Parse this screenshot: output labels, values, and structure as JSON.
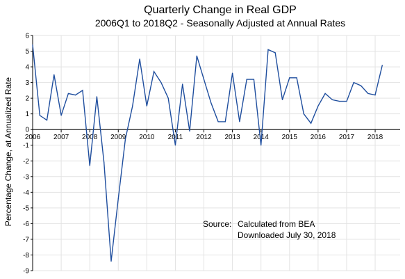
{
  "chart_data": {
    "type": "line",
    "title": "Quarterly Change in Real GDP",
    "subtitle": "2006Q1 to 2018Q2 - Seasonally Adjusted at Annual Rates",
    "ylabel": "Percentage Change, at Annualized Rate",
    "xlabel": "",
    "ylim": [
      -9,
      6
    ],
    "yticks": [
      6,
      5,
      4,
      3,
      2,
      1,
      0,
      -1,
      -2,
      -3,
      -4,
      -5,
      -6,
      -7,
      -8,
      -9
    ],
    "xticks": [
      "2006",
      "2007",
      "2008",
      "2009",
      "2010",
      "2011",
      "2012",
      "2013",
      "2014",
      "2015",
      "2016",
      "2017",
      "2018"
    ],
    "grid": true,
    "color": "#1f4e9e",
    "series": [
      {
        "x": [
          "2006Q1",
          "2006Q2",
          "2006Q3",
          "2006Q4",
          "2007Q1",
          "2007Q2",
          "2007Q3",
          "2007Q4",
          "2008Q1",
          "2008Q2",
          "2008Q3",
          "2008Q4",
          "2009Q1",
          "2009Q2",
          "2009Q3",
          "2009Q4",
          "2010Q1",
          "2010Q2",
          "2010Q3",
          "2010Q4",
          "2011Q1",
          "2011Q2",
          "2011Q3",
          "2011Q4",
          "2012Q1",
          "2012Q2",
          "2012Q3",
          "2012Q4",
          "2013Q1",
          "2013Q2",
          "2013Q3",
          "2013Q4",
          "2014Q1",
          "2014Q2",
          "2014Q3",
          "2014Q4",
          "2015Q1",
          "2015Q2",
          "2015Q3",
          "2015Q4",
          "2016Q1",
          "2016Q2",
          "2016Q3",
          "2016Q4",
          "2017Q1",
          "2017Q2",
          "2017Q3",
          "2017Q4",
          "2018Q1",
          "2018Q2"
        ],
        "values": [
          5.4,
          0.9,
          0.6,
          3.5,
          0.9,
          2.3,
          2.2,
          2.5,
          -2.3,
          2.1,
          -2.1,
          -8.4,
          -4.4,
          -0.6,
          1.5,
          4.5,
          1.5,
          3.7,
          3.0,
          2.0,
          -1.0,
          2.9,
          -0.1,
          4.7,
          3.2,
          1.7,
          0.5,
          0.5,
          3.6,
          0.5,
          3.2,
          3.2,
          -1.0,
          5.1,
          4.9,
          1.9,
          3.3,
          3.3,
          1.0,
          0.4,
          1.5,
          2.3,
          1.9,
          1.8,
          1.8,
          3.0,
          2.8,
          2.3,
          2.2,
          4.1
        ]
      }
    ]
  },
  "source": {
    "label": "Source:",
    "line1": "Calculated from BEA",
    "line2": "Downloaded July 30, 2018"
  }
}
